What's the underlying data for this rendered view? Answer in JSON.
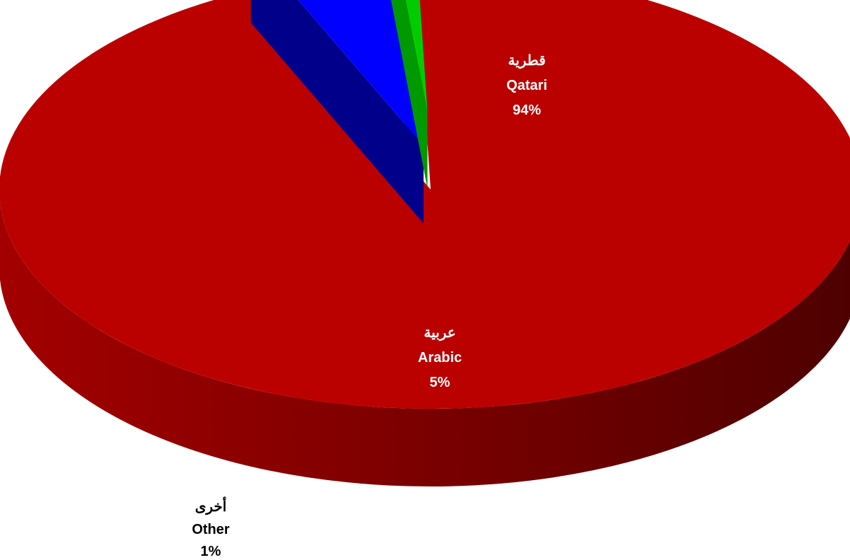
{
  "chart_data": {
    "type": "pie",
    "style": "3d-exploded",
    "title": "",
    "slices": [
      {
        "name_ar": "قطرية",
        "name_en": "Qatari",
        "value": 94,
        "label": "94%",
        "color": "#bb0000",
        "side_color": "#8a0000"
      },
      {
        "name_ar": "عربية",
        "name_en": "Arabic",
        "value": 5,
        "label": "5%",
        "color": "#0000ff",
        "side_color": "#00008b"
      },
      {
        "name_ar": "أخرى",
        "name_en": "Other",
        "value": 1,
        "label": "1%",
        "color": "#00cc00",
        "side_color": "#009900"
      }
    ],
    "legend": "none",
    "data_labels": "category-and-percent"
  }
}
